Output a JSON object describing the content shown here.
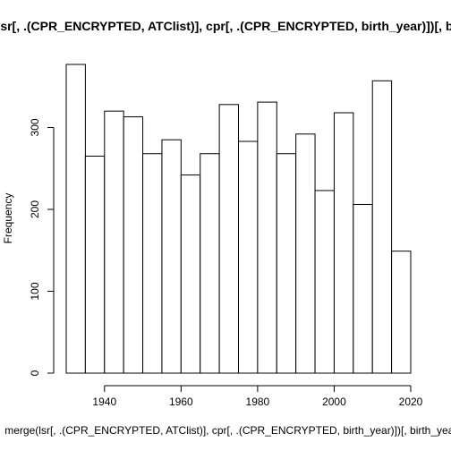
{
  "chart_data": {
    "type": "bar",
    "title": "merge(lsr[, .(CPR_ENCRYPTED, ATClist)], cpr[, .(CPR_ENCRYPTED, birth_year)])[, birth_year]",
    "xlabel": "merge(lsr[, .(CPR_ENCRYPTED, ATClist)], cpr[, .(CPR_ENCRYPTED, birth_year)])[, birth_year]",
    "ylabel": "Frequency",
    "bin_edges": [
      1930,
      1935,
      1940,
      1945,
      1950,
      1955,
      1960,
      1965,
      1970,
      1975,
      1980,
      1985,
      1990,
      1995,
      2000,
      2005,
      2010,
      2015,
      2020
    ],
    "values": [
      377,
      265,
      320,
      313,
      268,
      285,
      242,
      268,
      328,
      283,
      331,
      268,
      292,
      223,
      318,
      206,
      357,
      149
    ],
    "xlim": [
      1930,
      2020
    ],
    "ylim": [
      0,
      377
    ],
    "x_ticks": [
      1940,
      1960,
      1980,
      2000,
      2020
    ],
    "y_ticks": [
      0,
      100,
      200,
      300
    ],
    "grid": false,
    "bar_fill": "#ffffff",
    "bar_stroke": "#000000"
  }
}
